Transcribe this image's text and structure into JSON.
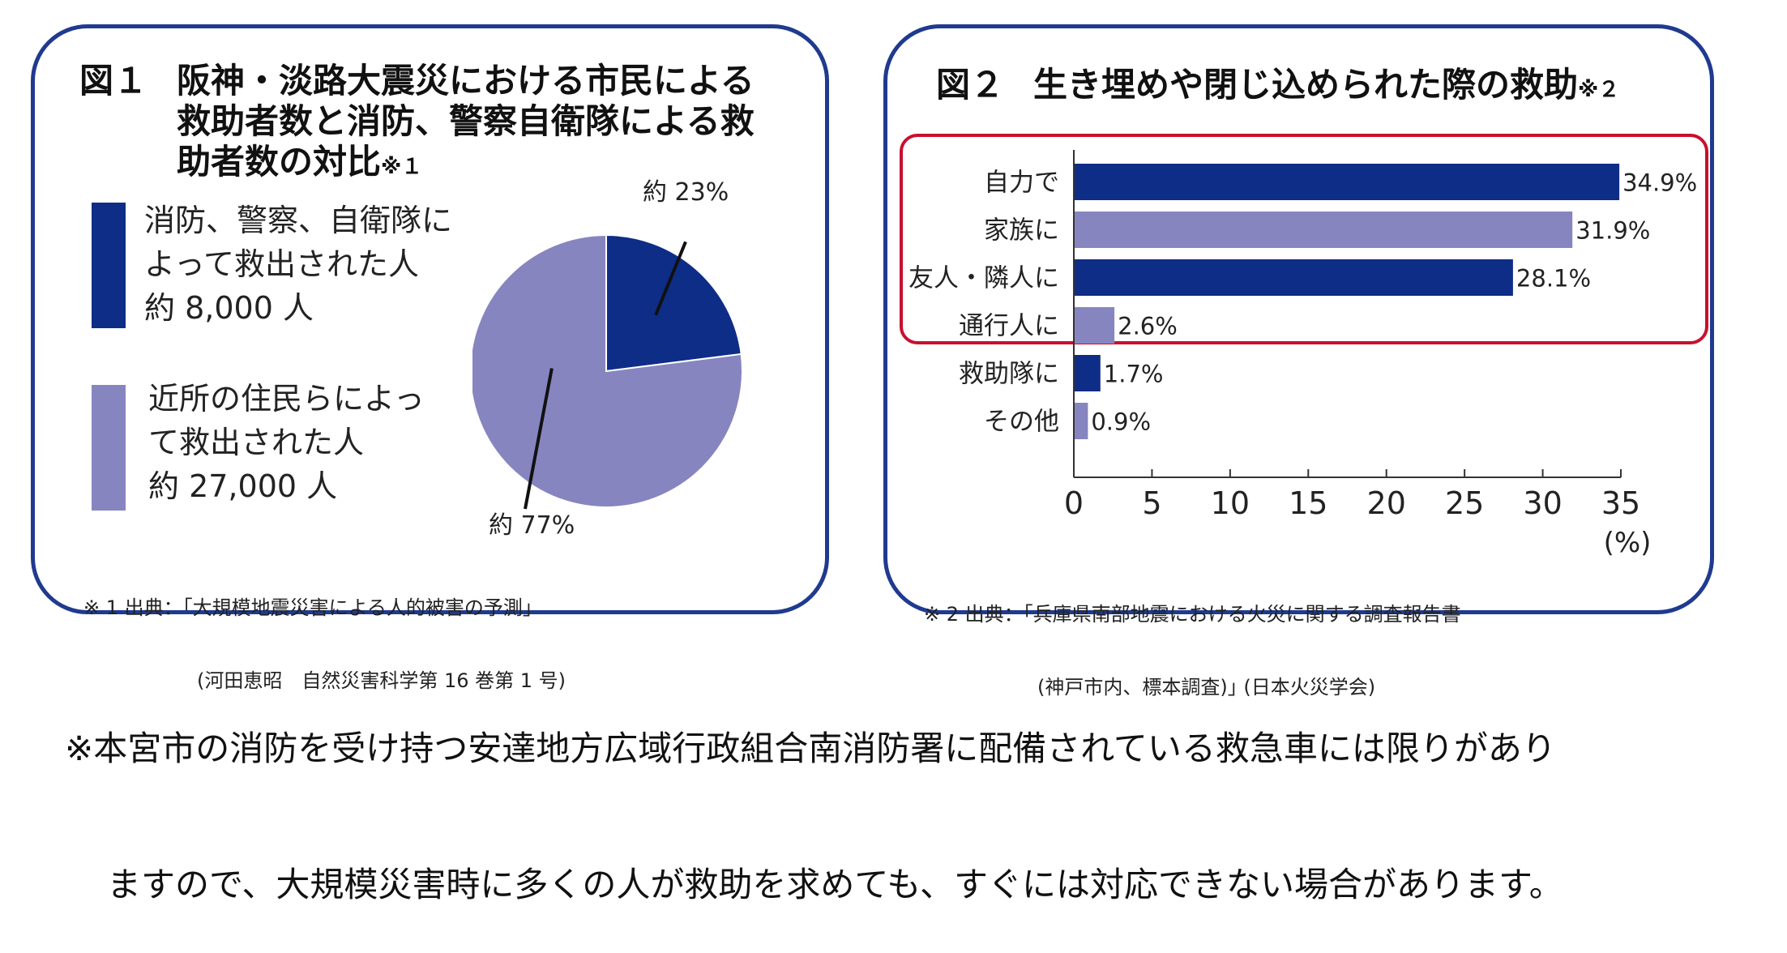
{
  "figure1": {
    "title_num": "図１",
    "title_line1": "阪神・淡路大震災における市民による",
    "title_line2": "救助者数と消防、警察自衛隊による救",
    "title_line3": "助者数の対比",
    "title_note": "※１",
    "legend": [
      {
        "line1": "消防、警察、自衛隊に",
        "line2": "よって救出された人",
        "line3": "約 8,000 人",
        "color": "#0e2d87"
      },
      {
        "line1": "近所の住民らによっ",
        "line2": "て救出された人",
        "line3": "約 27,000 人",
        "color": "#8785bf"
      }
    ],
    "source_line1": "※ 1 出典：｢大規模地震災害による人的被害の予測｣",
    "source_line2": "(河田恵昭　自然災害科学第 16 巻第 1 号)"
  },
  "figure2": {
    "title_num": "図２",
    "title_text": "生き埋めや閉じ込められた際の救助",
    "title_note": "※２",
    "source_line1": "※ 2 出典：｢兵庫県南部地震における火災に関する調査報告書",
    "source_line2": "(神戸市内、標本調査)｣ (日本火災学会)"
  },
  "footnote": {
    "line1": "※本宮市の消防を受け持つ安達地方広域行政組合南消防署に配備されている救急車には限りがあり",
    "line2": "ますので、大規模災害時に多くの人が救助を求めても、すぐには対応できない場合があります。"
  },
  "chart_data": [
    {
      "type": "pie",
      "labels": [
        "約 23%",
        "約 77%"
      ],
      "values": [
        23,
        77
      ],
      "colors": [
        "#0e2d87",
        "#8785bf"
      ]
    },
    {
      "type": "bar",
      "orientation": "horizontal",
      "categories": [
        "自力で",
        "家族に",
        "友人・隣人に",
        "通行人に",
        "救助隊に",
        "その他"
      ],
      "values": [
        34.9,
        31.9,
        28.1,
        2.6,
        1.7,
        0.9
      ],
      "value_labels": [
        "34.9%",
        "31.9%",
        "28.1%",
        "2.6%",
        "1.7%",
        "0.9%"
      ],
      "colors": [
        "#0e2d87",
        "#8785bf",
        "#0e2d87",
        "#8785bf",
        "#0e2d87",
        "#8785bf"
      ],
      "xlim": [
        0,
        35
      ],
      "xticks": [
        "0",
        "5",
        "10",
        "15",
        "20",
        "25",
        "30",
        "35"
      ],
      "xunit": "(%)",
      "highlighted": [
        "自力で",
        "家族に",
        "友人・隣人に",
        "通行人に"
      ],
      "grid": false
    }
  ]
}
